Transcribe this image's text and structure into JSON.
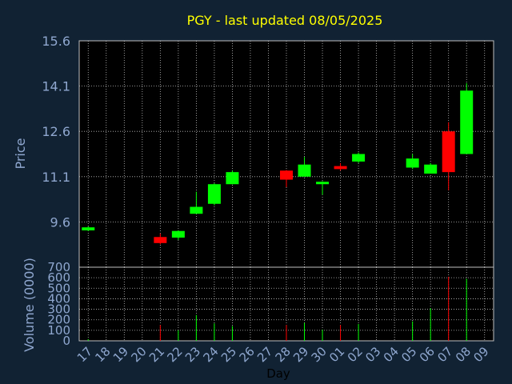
{
  "chart_data": [
    {
      "type": "candlestick",
      "title": "PGY - last updated 08/05/2025",
      "ylabel": "Price",
      "xlabel": "Day",
      "ylim": [
        8.1,
        15.6
      ],
      "yticks": [
        "15.6",
        "14.1",
        "12.6",
        "11.1",
        "9.6"
      ],
      "grid": true,
      "categories": [
        "17",
        "18",
        "19",
        "20",
        "21",
        "22",
        "23",
        "24",
        "25",
        "26",
        "27",
        "28",
        "29",
        "30",
        "01",
        "02",
        "03",
        "04",
        "05",
        "06",
        "07",
        "08",
        "09"
      ],
      "series": [
        {
          "candles": [
            {
              "x": "17",
              "open": 9.32,
              "close": 9.42,
              "high": 9.45,
              "low": 9.3
            },
            {
              "x": "21",
              "open": 9.1,
              "close": 8.9,
              "high": 9.22,
              "low": 8.86
            },
            {
              "x": "22",
              "open": 9.08,
              "close": 9.3,
              "high": 9.32,
              "low": 9.0
            },
            {
              "x": "23",
              "open": 9.87,
              "close": 10.1,
              "high": 10.6,
              "low": 9.87
            },
            {
              "x": "24",
              "open": 10.2,
              "close": 10.85,
              "high": 10.88,
              "low": 10.15
            },
            {
              "x": "25",
              "open": 10.85,
              "close": 11.25,
              "high": 11.3,
              "low": 10.85
            },
            {
              "x": "28",
              "open": 11.3,
              "close": 11.0,
              "high": 11.32,
              "low": 10.75
            },
            {
              "x": "29",
              "open": 11.1,
              "close": 11.5,
              "high": 11.75,
              "low": 11.1
            },
            {
              "x": "30",
              "open": 10.85,
              "close": 10.93,
              "high": 10.95,
              "low": 10.5
            },
            {
              "x": "01",
              "open": 11.45,
              "close": 11.35,
              "high": 11.55,
              "low": 11.3
            },
            {
              "x": "02",
              "open": 11.6,
              "close": 11.85,
              "high": 11.9,
              "low": 11.55
            },
            {
              "x": "05",
              "open": 11.4,
              "close": 11.7,
              "high": 11.85,
              "low": 11.35
            },
            {
              "x": "06",
              "open": 11.2,
              "close": 11.5,
              "high": 11.55,
              "low": 11.2
            },
            {
              "x": "07",
              "open": 12.6,
              "close": 11.25,
              "high": 12.9,
              "low": 10.65
            },
            {
              "x": "08",
              "open": 11.85,
              "close": 13.95,
              "high": 14.2,
              "low": 11.85
            }
          ]
        }
      ]
    },
    {
      "type": "bar",
      "ylabel": "Volume (0000)",
      "ylim": [
        0,
        700
      ],
      "yticks": [
        "700",
        "600",
        "500",
        "400",
        "300",
        "200",
        "100",
        "0"
      ],
      "grid": true,
      "categories": [
        "17",
        "18",
        "19",
        "20",
        "21",
        "22",
        "23",
        "24",
        "25",
        "26",
        "27",
        "28",
        "29",
        "30",
        "01",
        "02",
        "03",
        "04",
        "05",
        "06",
        "07",
        "08",
        "09"
      ],
      "series": [
        {
          "bars": [
            {
              "x": "17",
              "value": 15,
              "direction": "up"
            },
            {
              "x": "21",
              "value": 150,
              "direction": "down"
            },
            {
              "x": "22",
              "value": 100,
              "direction": "up"
            },
            {
              "x": "23",
              "value": 245,
              "direction": "up"
            },
            {
              "x": "24",
              "value": 165,
              "direction": "up"
            },
            {
              "x": "25",
              "value": 140,
              "direction": "up"
            },
            {
              "x": "28",
              "value": 150,
              "direction": "down"
            },
            {
              "x": "29",
              "value": 170,
              "direction": "up"
            },
            {
              "x": "30",
              "value": 105,
              "direction": "up"
            },
            {
              "x": "01",
              "value": 150,
              "direction": "down"
            },
            {
              "x": "02",
              "value": 160,
              "direction": "up"
            },
            {
              "x": "05",
              "value": 185,
              "direction": "up"
            },
            {
              "x": "06",
              "value": 310,
              "direction": "up"
            },
            {
              "x": "07",
              "value": 610,
              "direction": "down"
            },
            {
              "x": "08",
              "value": 590,
              "direction": "up"
            }
          ]
        }
      ]
    }
  ],
  "colors": {
    "background": "#112233",
    "plot_background": "#000000",
    "up": "#00ff00",
    "down": "#ff0000",
    "title": "#ffff00",
    "labels": "#8fa7cf",
    "grid": "#c0c0c0"
  }
}
